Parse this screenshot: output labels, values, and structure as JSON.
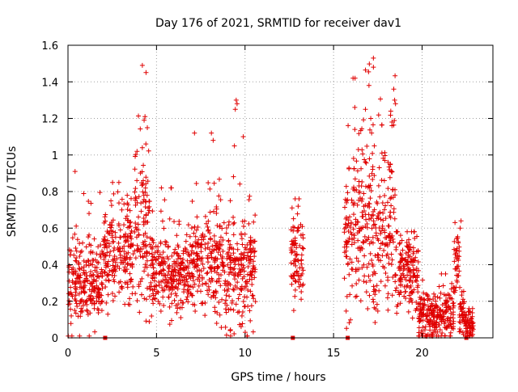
{
  "chart_data": {
    "type": "scatter",
    "title": "Day 176 of 2021, SRMTID for receiver dav1",
    "xlabel": "GPS time / hours",
    "ylabel": "SRMTID / TECUs",
    "xlim": [
      0,
      24
    ],
    "ylim": [
      0,
      1.6
    ],
    "xticks": [
      0,
      5,
      10,
      15,
      20
    ],
    "xtick_labels": [
      "0",
      "5",
      "10",
      "15",
      "20"
    ],
    "yticks": [
      0,
      0.2,
      0.4,
      0.6,
      0.8,
      1.0,
      1.2,
      1.4,
      1.6
    ],
    "ytick_labels": [
      "0",
      "0.2",
      "0.4",
      "0.6",
      "0.8",
      "1",
      "1.2",
      "1.4",
      "1.6"
    ],
    "grid": true,
    "marker": "plus",
    "series_color": "#e00000",
    "data_gaps_hours": [
      [
        10.6,
        12.6
      ],
      [
        13.3,
        15.6
      ]
    ],
    "zero_markers_x": [
      2.1,
      12.7,
      15.8,
      22.5
    ],
    "segments": [
      {
        "start": 0.0,
        "end": 2.0,
        "mean": 0.3,
        "spread": 0.16,
        "max": 0.92
      },
      {
        "start": 2.0,
        "end": 3.7,
        "mean": 0.45,
        "spread": 0.17,
        "max": 0.85
      },
      {
        "start": 3.7,
        "end": 4.6,
        "mean": 0.6,
        "spread": 0.3,
        "max": 1.5
      },
      {
        "start": 4.6,
        "end": 7.0,
        "mean": 0.35,
        "spread": 0.14,
        "max": 0.82
      },
      {
        "start": 7.0,
        "end": 8.5,
        "mean": 0.4,
        "spread": 0.17,
        "max": 1.12
      },
      {
        "start": 8.5,
        "end": 10.6,
        "mean": 0.38,
        "spread": 0.2,
        "max": 1.31
      },
      {
        "start": 12.6,
        "end": 13.3,
        "mean": 0.42,
        "spread": 0.15,
        "max": 0.76
      },
      {
        "start": 15.6,
        "end": 16.5,
        "mean": 0.55,
        "spread": 0.3,
        "max": 1.42
      },
      {
        "start": 16.5,
        "end": 18.5,
        "mean": 0.6,
        "spread": 0.3,
        "max": 1.53
      },
      {
        "start": 18.5,
        "end": 19.8,
        "mean": 0.35,
        "spread": 0.15,
        "max": 0.58
      },
      {
        "start": 19.8,
        "end": 21.8,
        "mean": 0.12,
        "spread": 0.09,
        "max": 0.35
      },
      {
        "start": 21.8,
        "end": 22.1,
        "mean": 0.4,
        "spread": 0.15,
        "max": 0.65
      },
      {
        "start": 22.1,
        "end": 22.4,
        "mean": 0.15,
        "spread": 0.08,
        "max": 0.3
      },
      {
        "start": 22.4,
        "end": 22.9,
        "mean": 0.07,
        "spread": 0.05,
        "max": 0.16
      }
    ],
    "highlight_points": [
      {
        "x": 0.4,
        "y": 0.91
      },
      {
        "x": 4.2,
        "y": 1.49
      },
      {
        "x": 4.35,
        "y": 1.21
      },
      {
        "x": 4.3,
        "y": 1.19
      },
      {
        "x": 4.4,
        "y": 1.06
      },
      {
        "x": 3.9,
        "y": 1.02
      },
      {
        "x": 8.1,
        "y": 1.12
      },
      {
        "x": 8.2,
        "y": 1.08
      },
      {
        "x": 9.5,
        "y": 1.3
      },
      {
        "x": 9.45,
        "y": 1.25
      },
      {
        "x": 9.55,
        "y": 1.28
      },
      {
        "x": 9.9,
        "y": 1.1
      },
      {
        "x": 9.4,
        "y": 1.05
      },
      {
        "x": 16.1,
        "y": 1.42
      },
      {
        "x": 17.25,
        "y": 1.53
      },
      {
        "x": 17.25,
        "y": 1.48
      },
      {
        "x": 17.0,
        "y": 1.38
      },
      {
        "x": 16.2,
        "y": 1.26
      },
      {
        "x": 16.8,
        "y": 1.25
      },
      {
        "x": 17.1,
        "y": 1.2
      },
      {
        "x": 18.4,
        "y": 1.36
      },
      {
        "x": 18.45,
        "y": 1.3
      },
      {
        "x": 18.5,
        "y": 1.28
      },
      {
        "x": 18.3,
        "y": 1.16
      },
      {
        "x": 16.2,
        "y": 1.14
      },
      {
        "x": 17.15,
        "y": 1.12
      },
      {
        "x": 17.3,
        "y": 1.05
      },
      {
        "x": 16.4,
        "y": 1.03
      },
      {
        "x": 22.2,
        "y": 0.64
      },
      {
        "x": 22.15,
        "y": 0.6
      },
      {
        "x": 13.05,
        "y": 0.76
      },
      {
        "x": 13.0,
        "y": 0.72
      },
      {
        "x": 12.75,
        "y": 0.15
      },
      {
        "x": 19.5,
        "y": 0.46
      },
      {
        "x": 22.85,
        "y": 0.16
      }
    ]
  }
}
